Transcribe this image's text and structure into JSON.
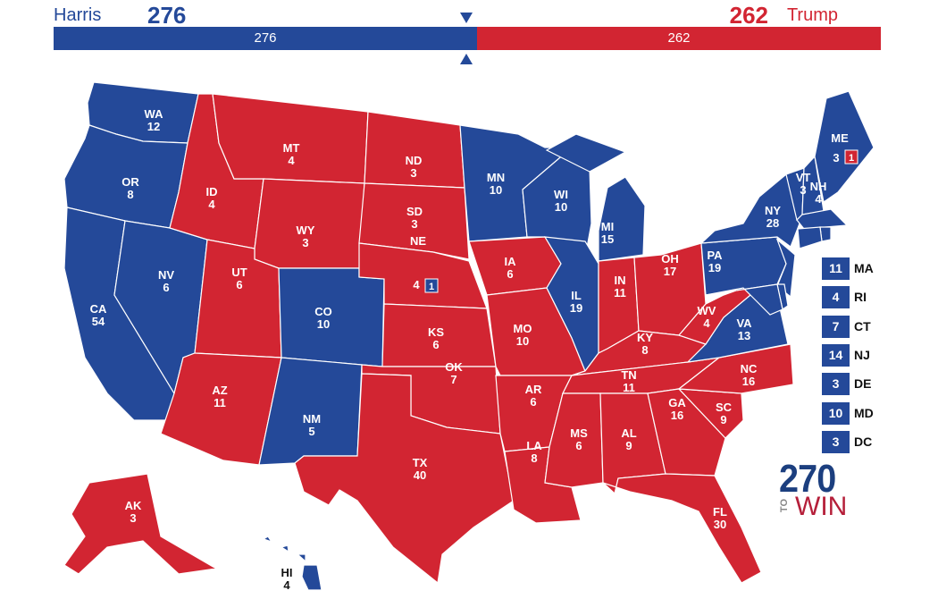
{
  "colors": {
    "dem": "#244999",
    "rep": "#d22532",
    "border": "#ffffff"
  },
  "header": {
    "dem_name": "Harris",
    "dem_total": "276",
    "rep_name": "Trump",
    "rep_total": "262",
    "bar_dem": "276",
    "bar_rep": "262"
  },
  "states": [
    {
      "abbr": "WA",
      "ev": "12",
      "party": "dem"
    },
    {
      "abbr": "OR",
      "ev": "8",
      "party": "dem"
    },
    {
      "abbr": "CA",
      "ev": "54",
      "party": "dem"
    },
    {
      "abbr": "NV",
      "ev": "6",
      "party": "dem"
    },
    {
      "abbr": "ID",
      "ev": "4",
      "party": "rep"
    },
    {
      "abbr": "MT",
      "ev": "4",
      "party": "rep"
    },
    {
      "abbr": "WY",
      "ev": "3",
      "party": "rep"
    },
    {
      "abbr": "UT",
      "ev": "6",
      "party": "rep"
    },
    {
      "abbr": "CO",
      "ev": "10",
      "party": "dem"
    },
    {
      "abbr": "AZ",
      "ev": "11",
      "party": "rep"
    },
    {
      "abbr": "NM",
      "ev": "5",
      "party": "dem"
    },
    {
      "abbr": "ND",
      "ev": "3",
      "party": "rep"
    },
    {
      "abbr": "SD",
      "ev": "3",
      "party": "rep"
    },
    {
      "abbr": "NE",
      "ev": "4",
      "party": "rep"
    },
    {
      "abbr": "KS",
      "ev": "6",
      "party": "rep"
    },
    {
      "abbr": "OK",
      "ev": "7",
      "party": "rep"
    },
    {
      "abbr": "TX",
      "ev": "40",
      "party": "rep"
    },
    {
      "abbr": "MN",
      "ev": "10",
      "party": "dem"
    },
    {
      "abbr": "IA",
      "ev": "6",
      "party": "rep"
    },
    {
      "abbr": "MO",
      "ev": "10",
      "party": "rep"
    },
    {
      "abbr": "AR",
      "ev": "6",
      "party": "rep"
    },
    {
      "abbr": "LA",
      "ev": "8",
      "party": "rep"
    },
    {
      "abbr": "WI",
      "ev": "10",
      "party": "dem"
    },
    {
      "abbr": "IL",
      "ev": "19",
      "party": "dem"
    },
    {
      "abbr": "MI",
      "ev": "15",
      "party": "dem"
    },
    {
      "abbr": "IN",
      "ev": "11",
      "party": "rep"
    },
    {
      "abbr": "OH",
      "ev": "17",
      "party": "rep"
    },
    {
      "abbr": "KY",
      "ev": "8",
      "party": "rep"
    },
    {
      "abbr": "TN",
      "ev": "11",
      "party": "rep"
    },
    {
      "abbr": "MS",
      "ev": "6",
      "party": "rep"
    },
    {
      "abbr": "AL",
      "ev": "9",
      "party": "rep"
    },
    {
      "abbr": "GA",
      "ev": "16",
      "party": "rep"
    },
    {
      "abbr": "FL",
      "ev": "30",
      "party": "rep"
    },
    {
      "abbr": "SC",
      "ev": "9",
      "party": "rep"
    },
    {
      "abbr": "NC",
      "ev": "16",
      "party": "rep"
    },
    {
      "abbr": "VA",
      "ev": "13",
      "party": "dem"
    },
    {
      "abbr": "WV",
      "ev": "4",
      "party": "rep"
    },
    {
      "abbr": "PA",
      "ev": "19",
      "party": "dem"
    },
    {
      "abbr": "NY",
      "ev": "28",
      "party": "dem"
    },
    {
      "abbr": "VT",
      "ev": "3",
      "party": "dem"
    },
    {
      "abbr": "NH",
      "ev": "4",
      "party": "dem"
    },
    {
      "abbr": "ME",
      "ev": "3",
      "party": "dem"
    },
    {
      "abbr": "AK",
      "ev": "3",
      "party": "rep"
    },
    {
      "abbr": "HI",
      "ev": "4",
      "party": "dem"
    },
    {
      "abbr": "MA",
      "ev": "11",
      "party": "dem"
    },
    {
      "abbr": "RI",
      "ev": "4",
      "party": "dem"
    },
    {
      "abbr": "CT",
      "ev": "7",
      "party": "dem"
    },
    {
      "abbr": "NJ",
      "ev": "14",
      "party": "dem"
    },
    {
      "abbr": "DE",
      "ev": "3",
      "party": "dem"
    },
    {
      "abbr": "MD",
      "ev": "10",
      "party": "dem"
    },
    {
      "abbr": "DC",
      "ev": "3",
      "party": "dem"
    }
  ],
  "districts": [
    {
      "state": "ME",
      "ev": "1",
      "party": "rep"
    },
    {
      "state": "NE",
      "ev": "1",
      "party": "dem"
    }
  ],
  "small_states": [
    "MA",
    "RI",
    "CT",
    "NJ",
    "DE",
    "MD",
    "DC"
  ],
  "logo": {
    "number": "270",
    "to": "TO",
    "win": "WIN"
  }
}
